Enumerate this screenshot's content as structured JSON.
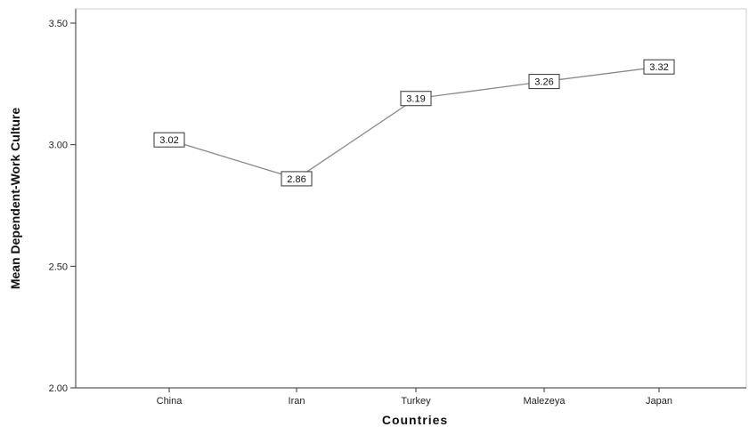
{
  "chart_data": {
    "type": "line",
    "categories": [
      "China",
      "Iran",
      "Turkey",
      "Malezeya",
      "Japan"
    ],
    "series": [
      {
        "values": [
          3.02,
          2.86,
          3.19,
          3.26,
          3.32
        ]
      }
    ],
    "data_labels": [
      "3.02",
      "2.86",
      "3.19",
      "3.26",
      "3.32"
    ],
    "ylim": [
      2.0,
      3.5
    ],
    "yticks": [
      2.0,
      2.5,
      3.0,
      3.5
    ],
    "ytick_labels": [
      "2.00",
      "2.50",
      "3.00",
      "3.50"
    ],
    "xlabel": "Countries",
    "ylabel": "Mean Dependent-Work Culture",
    "title": "",
    "grid": false,
    "colors": {
      "line": "#8a8a8a",
      "axis": "#333333",
      "label_border": "#333333"
    }
  }
}
